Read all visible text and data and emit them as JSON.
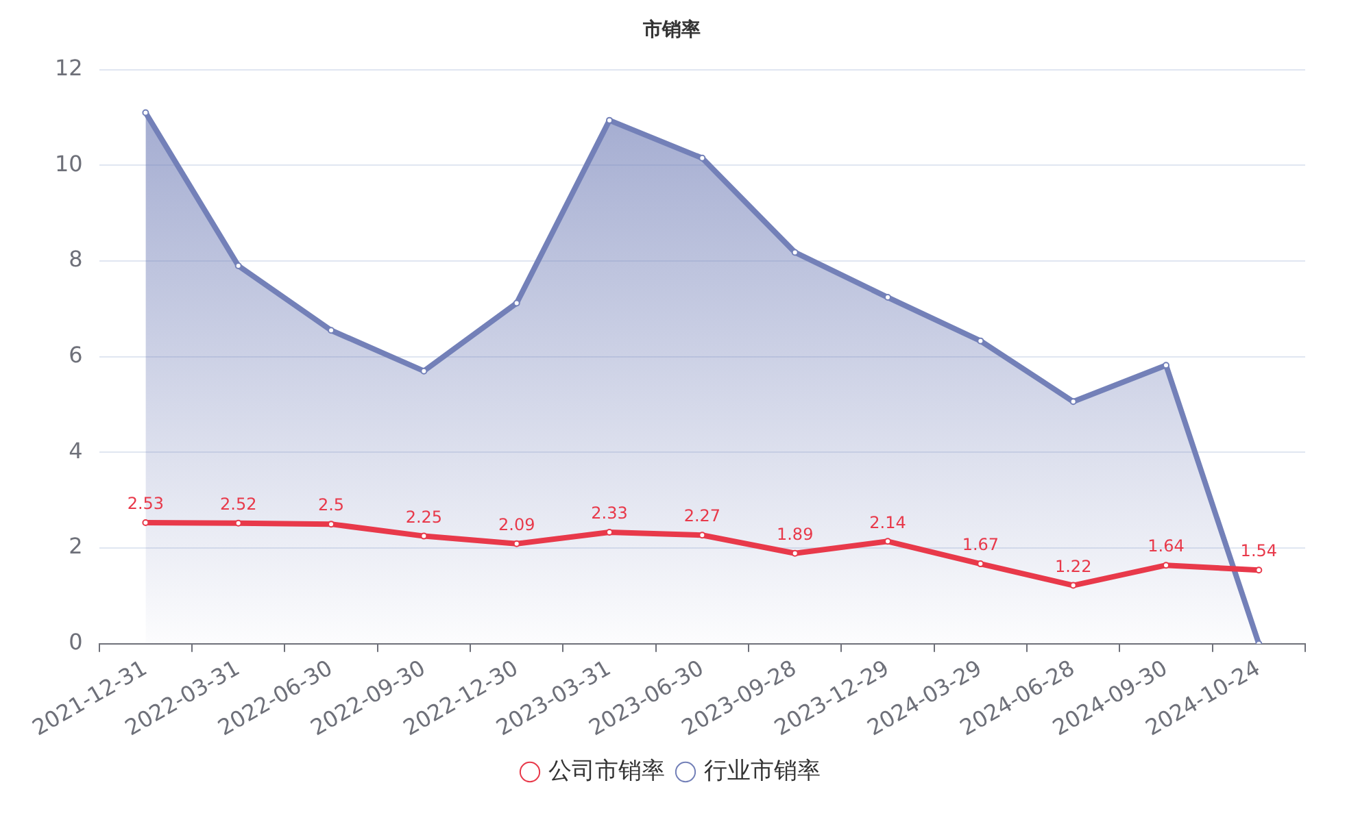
{
  "chart_data": {
    "type": "line",
    "title": "市销率",
    "categories": [
      "2021-12-31",
      "2022-03-31",
      "2022-06-30",
      "2022-09-30",
      "2022-12-30",
      "2023-03-31",
      "2023-06-30",
      "2023-09-28",
      "2023-12-29",
      "2024-03-29",
      "2024-06-28",
      "2024-09-30",
      "2024-10-24"
    ],
    "series": [
      {
        "name": "公司市销率",
        "type": "line",
        "color": "#e8394a",
        "values": [
          2.53,
          2.52,
          2.5,
          2.25,
          2.09,
          2.33,
          2.27,
          1.89,
          2.14,
          1.67,
          1.22,
          1.64,
          1.54
        ],
        "value_labels": [
          "2.53",
          "2.52",
          "2.5",
          "2.25",
          "2.09",
          "2.33",
          "2.27",
          "1.89",
          "2.14",
          "1.67",
          "1.22",
          "1.64",
          "1.54"
        ]
      },
      {
        "name": "行业市销率",
        "type": "area",
        "color": "#7380b8",
        "values": [
          11.1,
          7.9,
          6.55,
          5.7,
          7.12,
          10.94,
          10.15,
          8.18,
          7.24,
          6.33,
          5.06,
          5.82,
          0
        ]
      }
    ],
    "ylim": [
      0,
      12
    ],
    "yticks": [
      0,
      2,
      4,
      6,
      8,
      10,
      12
    ],
    "grid": "y",
    "legend": "bottom",
    "marker": "circle"
  }
}
